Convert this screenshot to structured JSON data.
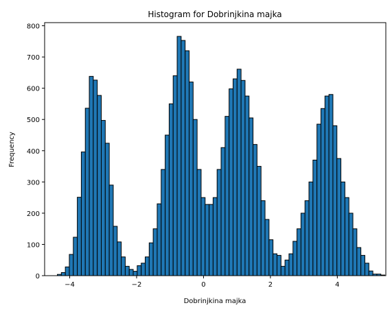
{
  "chart_data": {
    "type": "bar",
    "title": "Histogram for Dobrinjkina majka",
    "xlabel": "Dobrinjkina majka",
    "ylabel": "Frequency",
    "xlim": [
      -4.75,
      5.45
    ],
    "ylim": [
      0,
      810
    ],
    "x_ticks": [
      -4,
      -2,
      0,
      2,
      4
    ],
    "x_tick_labels": [
      "−4",
      "−2",
      "0",
      "2",
      "4"
    ],
    "y_ticks": [
      0,
      100,
      200,
      300,
      400,
      500,
      600,
      700,
      800
    ],
    "y_tick_labels": [
      "0",
      "100",
      "200",
      "300",
      "400",
      "500",
      "600",
      "700",
      "800"
    ],
    "grid": false,
    "bar_color": "#1f77b4",
    "edge_color": "#000000",
    "bin_start": -4.37,
    "bin_width": 0.1194,
    "values": [
      4,
      10,
      28,
      68,
      123,
      251,
      396,
      536,
      638,
      626,
      577,
      497,
      424,
      290,
      158,
      108,
      60,
      30,
      20,
      14,
      32,
      40,
      60,
      105,
      150,
      230,
      340,
      450,
      550,
      640,
      766,
      753,
      720,
      620,
      500,
      340,
      250,
      228,
      228,
      250,
      340,
      410,
      510,
      598,
      630,
      661,
      625,
      575,
      505,
      420,
      350,
      240,
      180,
      115,
      70,
      65,
      30,
      50,
      70,
      110,
      150,
      200,
      240,
      300,
      370,
      485,
      535,
      575,
      580,
      480,
      375,
      300,
      250,
      200,
      150,
      90,
      65,
      40,
      15,
      5,
      5,
      2
    ]
  }
}
